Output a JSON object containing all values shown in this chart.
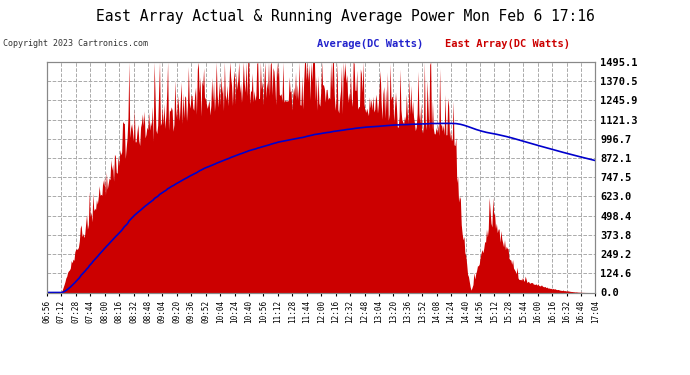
{
  "title": "East Array Actual & Running Average Power Mon Feb 6 17:16",
  "copyright": "Copyright 2023 Cartronics.com",
  "legend_avg": "Average(DC Watts)",
  "legend_east": "East Array(DC Watts)",
  "yticks": [
    0.0,
    124.6,
    249.2,
    373.8,
    498.4,
    623.0,
    747.5,
    872.1,
    996.7,
    1121.3,
    1245.9,
    1370.5,
    1495.1
  ],
  "ymax": 1495.1,
  "bg_color": "#ffffff",
  "plot_bg_color": "#ffffff",
  "grid_color": "#aaaaaa",
  "bar_color": "#cc0000",
  "avg_color": "#0000cc",
  "title_color": "#000000",
  "legend_avg_color": "#2222cc",
  "legend_east_color": "#cc0000",
  "xtick_labels": [
    "06:56",
    "07:12",
    "07:28",
    "07:44",
    "08:00",
    "08:16",
    "08:32",
    "08:48",
    "09:04",
    "09:20",
    "09:36",
    "09:52",
    "10:04",
    "10:24",
    "10:40",
    "10:56",
    "11:12",
    "11:28",
    "11:44",
    "12:00",
    "12:16",
    "12:32",
    "12:48",
    "13:04",
    "13:20",
    "13:36",
    "13:52",
    "14:08",
    "14:24",
    "14:40",
    "14:56",
    "15:12",
    "15:28",
    "15:44",
    "16:00",
    "16:16",
    "16:32",
    "16:48",
    "17:04"
  ]
}
